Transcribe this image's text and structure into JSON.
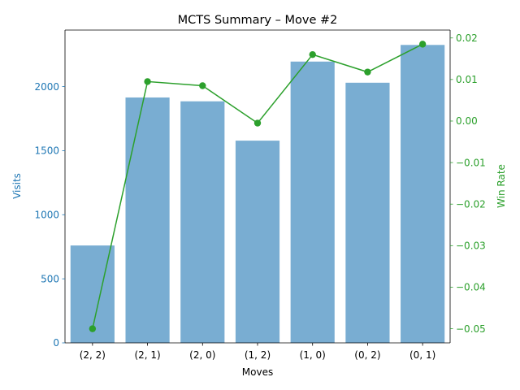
{
  "chart_data": {
    "type": "bar",
    "title": "MCTS Summary – Move #2",
    "xlabel": "Moves",
    "categories": [
      "(2, 2)",
      "(2, 1)",
      "(2, 0)",
      "(1, 2)",
      "(1, 0)",
      "(0, 2)",
      "(0, 1)"
    ],
    "series": [
      {
        "name": "Visits",
        "type": "bar",
        "axis": "left",
        "values": [
          760,
          1915,
          1885,
          1578,
          2195,
          2030,
          2325
        ]
      },
      {
        "name": "Win Rate",
        "type": "line",
        "axis": "right",
        "values": [
          -0.05,
          0.0095,
          0.0085,
          -0.0005,
          0.016,
          0.0118,
          0.0185
        ]
      }
    ],
    "y_left": {
      "label": "Visits",
      "range": [
        0,
        2441
      ],
      "ticks": [
        0,
        500,
        1000,
        1500,
        2000
      ],
      "tick_labels": [
        "0",
        "500",
        "1000",
        "1500",
        "2000"
      ]
    },
    "y_right": {
      "label": "Win Rate",
      "range": [
        -0.0534,
        0.0219
      ],
      "ticks": [
        -0.05,
        -0.04,
        -0.03,
        -0.02,
        -0.01,
        0.0,
        0.01,
        0.02
      ],
      "tick_labels": [
        "−0.05",
        "−0.04",
        "−0.03",
        "−0.02",
        "−0.01",
        "0.00",
        "0.01",
        "0.02"
      ]
    },
    "grid": false,
    "colors": {
      "bars": "#1f77b4",
      "bar_opacity": 0.6,
      "line": "#2ca02c",
      "left_axis": "#1f77b4",
      "right_axis": "#2ca02c",
      "frame": "#000000"
    }
  }
}
